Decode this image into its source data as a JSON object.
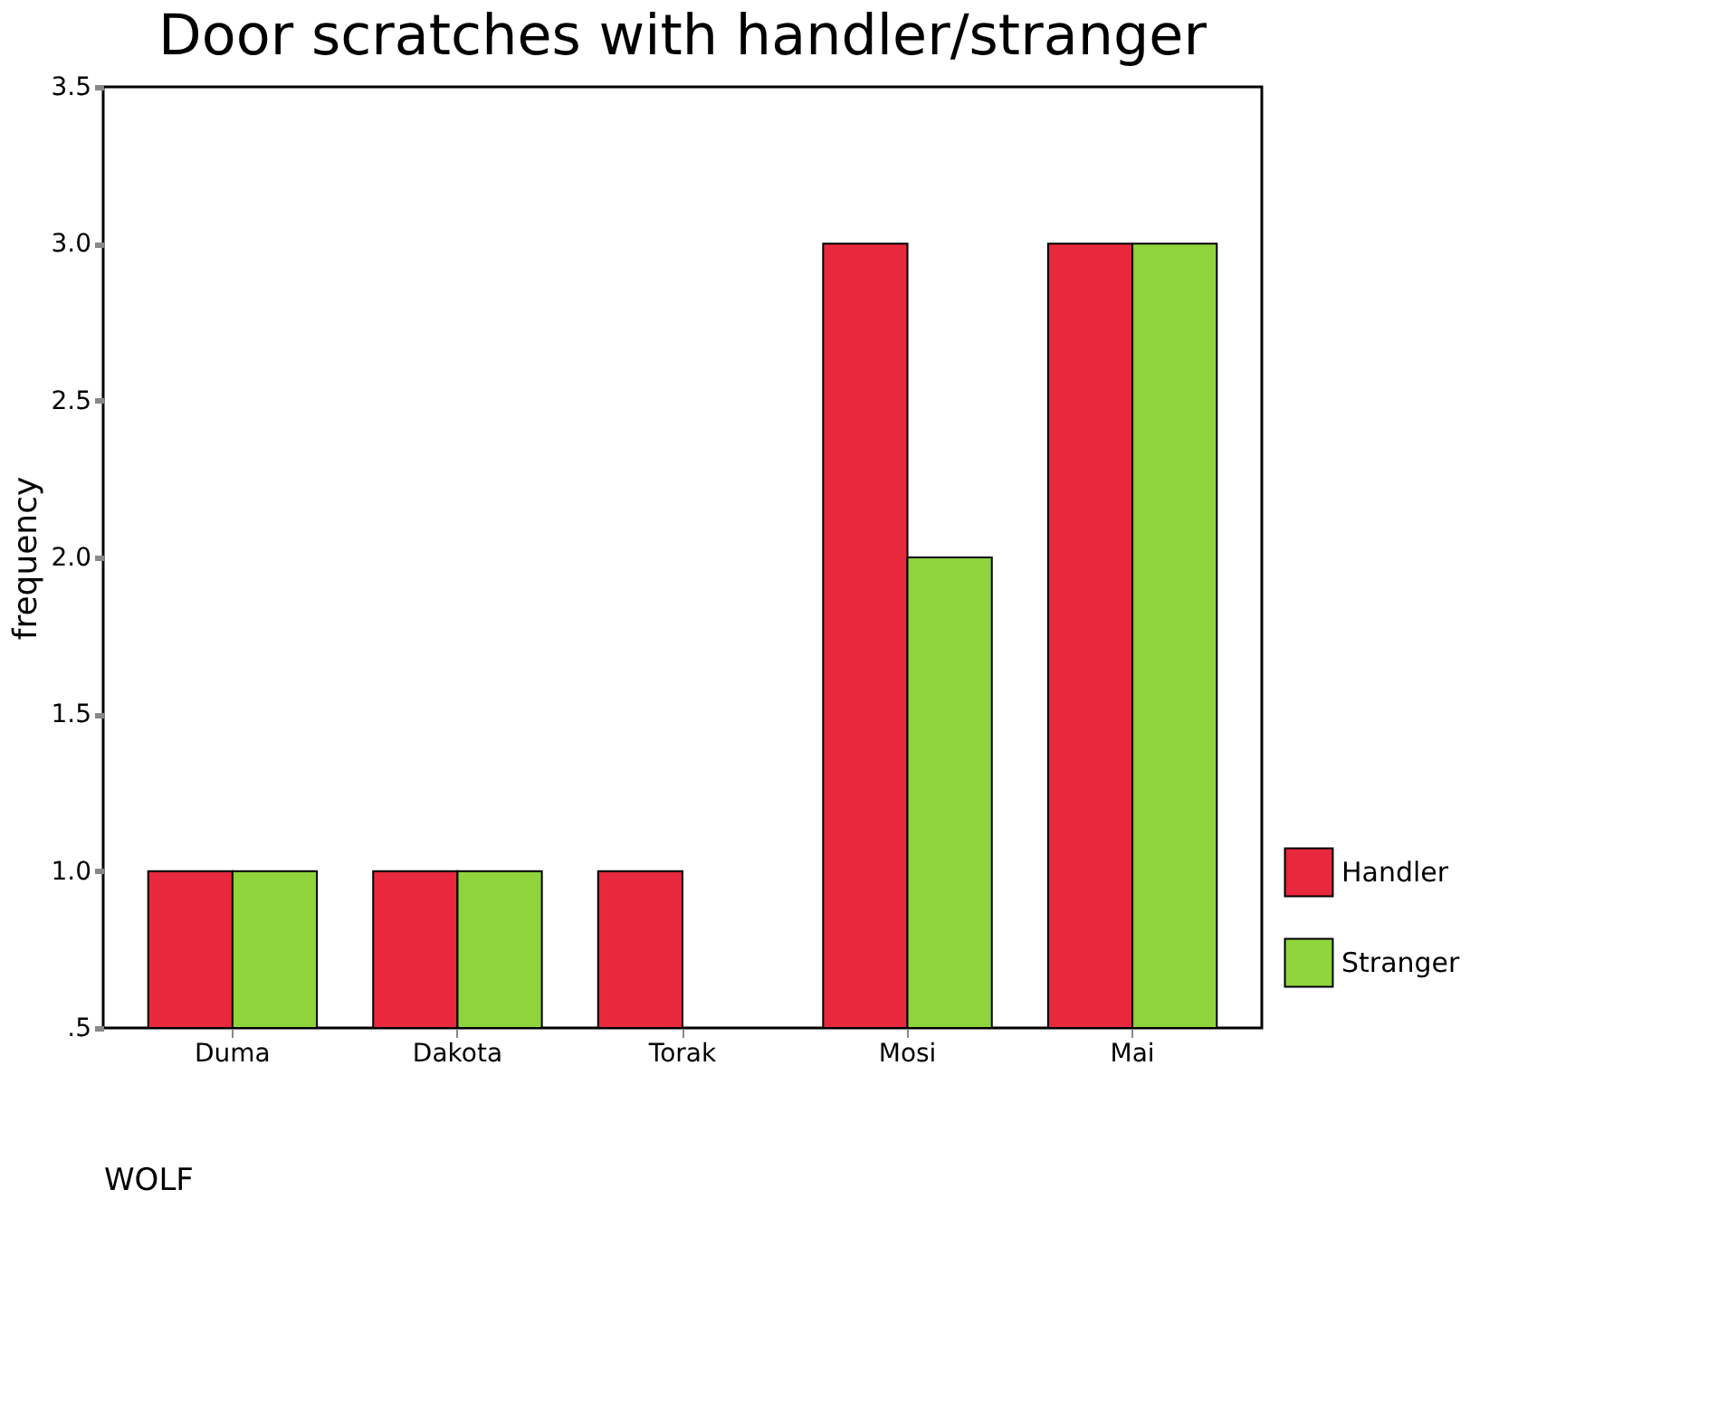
{
  "chart_data": {
    "type": "bar",
    "title": "Door scratches with handler/stranger",
    "xlabel": "WOLF",
    "ylabel": "frequency",
    "categories": [
      "Duma",
      "Dakota",
      "Torak",
      "Mosi",
      "Mai"
    ],
    "series": [
      {
        "name": "Handler",
        "color": "#e8283c",
        "values": [
          1,
          1,
          1,
          3,
          3
        ]
      },
      {
        "name": "Stranger",
        "color": "#90d43c",
        "values": [
          1,
          1,
          null,
          2,
          3
        ]
      }
    ],
    "ylim": [
      0.5,
      3.5
    ],
    "yticks": [
      {
        "value": 0.5,
        "label": ".5"
      },
      {
        "value": 1,
        "label": "1.0"
      },
      {
        "value": 1.5,
        "label": "1.5"
      },
      {
        "value": 2,
        "label": "2.0"
      },
      {
        "value": 2.5,
        "label": "2.5"
      },
      {
        "value": 3,
        "label": "3.0"
      },
      {
        "value": 3.5,
        "label": "3.5"
      }
    ],
    "grid": false,
    "legend": "right"
  }
}
